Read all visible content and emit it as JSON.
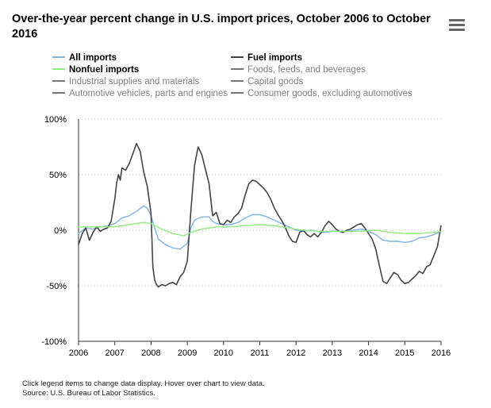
{
  "title": "Over-the-year percent change in U.S. import prices, October 2006 to October 2016",
  "menu_icon": "hamburger-menu-icon",
  "footer": {
    "note": "Click legend items to change data display. Hover over chart to view data.",
    "source": "Source: U.S. Bureau of Labor Statistics."
  },
  "legend": [
    {
      "label": "All imports",
      "color": "#7cb5ec",
      "active": true
    },
    {
      "label": "Fuel imports",
      "color": "#434348",
      "active": true
    },
    {
      "label": "Nonfuel imports",
      "color": "#90ed7d",
      "active": true
    },
    {
      "label": "Foods, feeds, and beverages",
      "color": "#7f7f7f",
      "active": false
    },
    {
      "label": "Industrial supplies and materials",
      "color": "#7f7f7f",
      "active": false
    },
    {
      "label": "Capital goods",
      "color": "#7f7f7f",
      "active": false
    },
    {
      "label": "Automotive vehicles, parts and engines",
      "color": "#7f7f7f",
      "active": false
    },
    {
      "label": "Consumer goods, excluding automotives",
      "color": "#7f7f7f",
      "active": false
    }
  ],
  "chart_data": {
    "type": "line",
    "title": "Over-the-year percent change in U.S. import prices, October 2006 to October 2016",
    "xlim": [
      2006,
      2016
    ],
    "ylim": [
      -100,
      100
    ],
    "y_ticks": [
      100,
      50,
      0,
      -50,
      -100
    ],
    "y_tick_labels": [
      "100%",
      "50%",
      "0%",
      "-50%",
      "-100%"
    ],
    "x_ticks": [
      2006,
      2007,
      2008,
      2009,
      2010,
      2011,
      2012,
      2013,
      2014,
      2015,
      2016
    ],
    "x_tick_labels": [
      "2006",
      "2007",
      "2008",
      "2009",
      "2010",
      "2011",
      "2012",
      "2013",
      "2014",
      "2015",
      "2016"
    ],
    "grid": "horizontal-dotted",
    "legend_position": "top",
    "series": [
      {
        "name": "All imports",
        "color": "#7cb5ec",
        "x": [
          2006.0,
          2006.2,
          2006.4,
          2006.6,
          2006.8,
          2007.0,
          2007.2,
          2007.4,
          2007.6,
          2007.8,
          2007.9,
          2008.0,
          2008.1,
          2008.2,
          2008.4,
          2008.6,
          2008.8,
          2009.0,
          2009.1,
          2009.2,
          2009.4,
          2009.6,
          2009.7,
          2009.8,
          2010.0,
          2010.2,
          2010.4,
          2010.6,
          2010.8,
          2011.0,
          2011.2,
          2011.4,
          2011.6,
          2011.8,
          2012.0,
          2012.2,
          2012.4,
          2012.6,
          2012.8,
          2013.0,
          2013.2,
          2013.4,
          2013.6,
          2013.8,
          2014.0,
          2014.2,
          2014.4,
          2014.6,
          2014.8,
          2015.0,
          2015.2,
          2015.4,
          2015.6,
          2015.8,
          2016.0
        ],
        "y": [
          -3,
          2,
          1,
          3,
          4,
          6,
          11,
          13,
          17,
          22,
          20,
          13,
          2,
          -8,
          -13,
          -16,
          -17,
          -12,
          2,
          9,
          12,
          12,
          8,
          6,
          5,
          5,
          7,
          11,
          14,
          14,
          12,
          9,
          6,
          3,
          0,
          -1,
          0,
          -1,
          -2,
          -1,
          -1,
          -1,
          0,
          1,
          -1,
          -4,
          -9,
          -10,
          -10,
          -11,
          -10,
          -7,
          -6,
          -4,
          -1
        ]
      },
      {
        "name": "Fuel imports",
        "color": "#434348",
        "x": [
          2006.0,
          2006.1,
          2006.2,
          2006.3,
          2006.4,
          2006.5,
          2006.6,
          2006.7,
          2006.8,
          2006.9,
          2007.0,
          2007.05,
          2007.1,
          2007.15,
          2007.2,
          2007.3,
          2007.4,
          2007.5,
          2007.6,
          2007.7,
          2007.8,
          2007.9,
          2008.0,
          2008.05,
          2008.1,
          2008.15,
          2008.2,
          2008.3,
          2008.4,
          2008.5,
          2008.6,
          2008.7,
          2008.8,
          2008.9,
          2009.0,
          2009.1,
          2009.2,
          2009.3,
          2009.4,
          2009.5,
          2009.6,
          2009.7,
          2009.8,
          2009.9,
          2010.0,
          2010.1,
          2010.2,
          2010.3,
          2010.4,
          2010.5,
          2010.6,
          2010.7,
          2010.8,
          2010.9,
          2011.0,
          2011.1,
          2011.2,
          2011.3,
          2011.4,
          2011.5,
          2011.6,
          2011.7,
          2011.8,
          2011.9,
          2012.0,
          2012.1,
          2012.2,
          2012.3,
          2012.4,
          2012.5,
          2012.6,
          2012.7,
          2012.8,
          2012.9,
          2013.0,
          2013.1,
          2013.2,
          2013.3,
          2013.4,
          2013.5,
          2013.6,
          2013.7,
          2013.8,
          2013.9,
          2014.0,
          2014.1,
          2014.2,
          2014.3,
          2014.4,
          2014.5,
          2014.6,
          2014.7,
          2014.8,
          2014.9,
          2015.0,
          2015.1,
          2015.2,
          2015.3,
          2015.4,
          2015.5,
          2015.6,
          2015.7,
          2015.8,
          2015.9,
          2016.0
        ],
        "y": [
          -13,
          -3,
          2,
          -9,
          -2,
          3,
          -1,
          1,
          2,
          8,
          28,
          42,
          50,
          45,
          56,
          54,
          60,
          69,
          78,
          71,
          52,
          39,
          15,
          -33,
          -45,
          -49,
          -51,
          -49,
          -50,
          -48,
          -47,
          -49,
          -42,
          -38,
          -28,
          18,
          58,
          75,
          68,
          55,
          42,
          13,
          16,
          6,
          5,
          9,
          7,
          12,
          15,
          20,
          32,
          42,
          45,
          44,
          41,
          38,
          34,
          28,
          20,
          14,
          9,
          3,
          -5,
          -10,
          -11,
          -2,
          0,
          -4,
          -6,
          -3,
          -6,
          -2,
          4,
          8,
          5,
          1,
          -1,
          -2,
          0,
          1,
          3,
          5,
          6,
          2,
          -3,
          -8,
          -17,
          -32,
          -46,
          -48,
          -43,
          -38,
          -40,
          -45,
          -48,
          -47,
          -44,
          -41,
          -37,
          -39,
          -33,
          -31,
          -23,
          -15,
          4
        ]
      },
      {
        "name": "Nonfuel imports",
        "color": "#90ed7d",
        "x": [
          2006.0,
          2006.4,
          2006.8,
          2007.0,
          2007.4,
          2007.8,
          2008.0,
          2008.3,
          2008.6,
          2008.9,
          2009.1,
          2009.4,
          2009.8,
          2010.2,
          2010.6,
          2011.0,
          2011.4,
          2011.8,
          2012.2,
          2012.6,
          2013.0,
          2013.4,
          2013.8,
          2014.2,
          2014.6,
          2015.0,
          2015.4,
          2015.8,
          2016.0
        ],
        "y": [
          3,
          3,
          3,
          3,
          5,
          7,
          6,
          1,
          -3,
          -5,
          -2,
          1,
          3,
          3,
          4,
          5,
          4,
          2,
          0,
          -1,
          -1,
          -1,
          -1,
          0,
          -2,
          -3,
          -3,
          -2,
          -1
        ]
      }
    ]
  }
}
